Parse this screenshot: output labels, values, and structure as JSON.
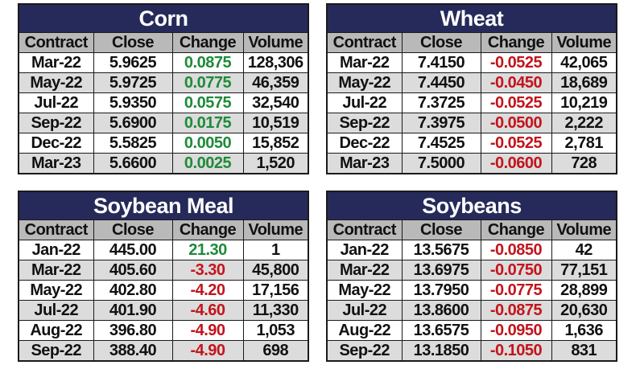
{
  "headers": {
    "contract": "Contract",
    "close": "Close",
    "change": "Change",
    "volume": "Volume"
  },
  "colors": {
    "title_bg": "#262a5a",
    "positive": "#1f8a3a",
    "negative": "#c3141c",
    "header_bg": "#b9b9b9",
    "stripe": "#dcdcdc"
  },
  "panels": {
    "corn": {
      "title": "Corn",
      "rows": [
        {
          "contract": "Mar-22",
          "close": "5.9625",
          "change": "0.0875",
          "volume": "128,306"
        },
        {
          "contract": "May-22",
          "close": "5.9725",
          "change": "0.0775",
          "volume": "46,359"
        },
        {
          "contract": "Jul-22",
          "close": "5.9350",
          "change": "0.0575",
          "volume": "32,540"
        },
        {
          "contract": "Sep-22",
          "close": "5.6900",
          "change": "0.0175",
          "volume": "10,519"
        },
        {
          "contract": "Dec-22",
          "close": "5.5825",
          "change": "0.0050",
          "volume": "15,852"
        },
        {
          "contract": "Mar-23",
          "close": "5.6600",
          "change": "0.0025",
          "volume": "1,520"
        }
      ]
    },
    "wheat": {
      "title": "Wheat",
      "rows": [
        {
          "contract": "Mar-22",
          "close": "7.4150",
          "change": "-0.0525",
          "volume": "42,065"
        },
        {
          "contract": "May-22",
          "close": "7.4450",
          "change": "-0.0450",
          "volume": "18,689"
        },
        {
          "contract": "Jul-22",
          "close": "7.3725",
          "change": "-0.0525",
          "volume": "10,219"
        },
        {
          "contract": "Sep-22",
          "close": "7.3975",
          "change": "-0.0500",
          "volume": "2,222"
        },
        {
          "contract": "Dec-22",
          "close": "7.4525",
          "change": "-0.0525",
          "volume": "2,781"
        },
        {
          "contract": "Mar-23",
          "close": "7.5000",
          "change": "-0.0600",
          "volume": "728"
        }
      ]
    },
    "soymeal": {
      "title": "Soybean Meal",
      "rows": [
        {
          "contract": "Jan-22",
          "close": "445.00",
          "change": "21.30",
          "volume": "1"
        },
        {
          "contract": "Mar-22",
          "close": "405.60",
          "change": "-3.30",
          "volume": "45,800"
        },
        {
          "contract": "May-22",
          "close": "402.80",
          "change": "-4.20",
          "volume": "17,156"
        },
        {
          "contract": "Jul-22",
          "close": "401.90",
          "change": "-4.60",
          "volume": "11,330"
        },
        {
          "contract": "Aug-22",
          "close": "396.80",
          "change": "-4.90",
          "volume": "1,053"
        },
        {
          "contract": "Sep-22",
          "close": "388.40",
          "change": "-4.90",
          "volume": "698"
        }
      ]
    },
    "soybeans": {
      "title": "Soybeans",
      "rows": [
        {
          "contract": "Jan-22",
          "close": "13.5675",
          "change": "-0.0850",
          "volume": "42"
        },
        {
          "contract": "Mar-22",
          "close": "13.6975",
          "change": "-0.0750",
          "volume": "77,151"
        },
        {
          "contract": "May-22",
          "close": "13.7950",
          "change": "-0.0775",
          "volume": "28,899"
        },
        {
          "contract": "Jul-22",
          "close": "13.8600",
          "change": "-0.0875",
          "volume": "20,630"
        },
        {
          "contract": "Aug-22",
          "close": "13.6575",
          "change": "-0.0950",
          "volume": "1,636"
        },
        {
          "contract": "Sep-22",
          "close": "13.1850",
          "change": "-0.1050",
          "volume": "831"
        }
      ]
    }
  }
}
